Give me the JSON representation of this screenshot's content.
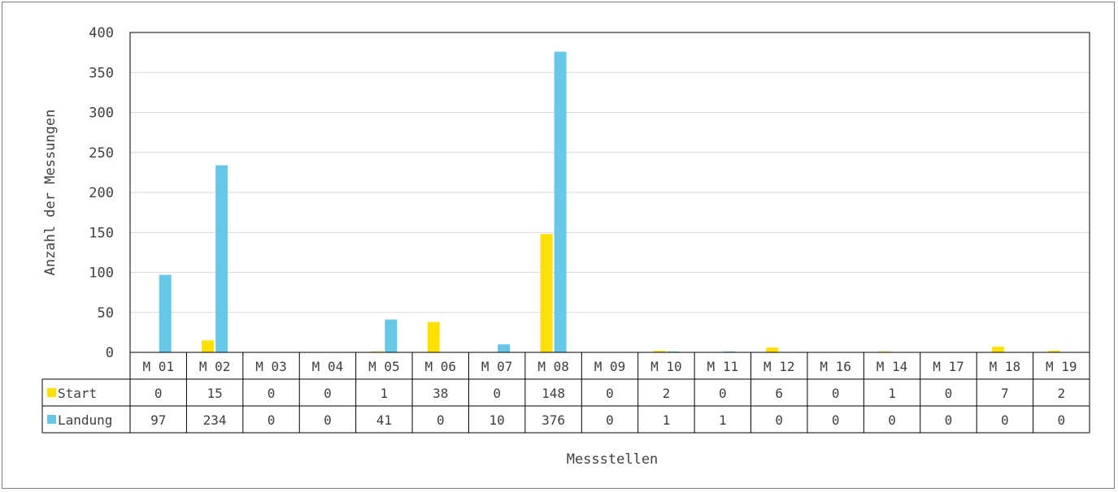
{
  "chart_data": {
    "type": "bar",
    "categories": [
      "M 01",
      "M 02",
      "M 03",
      "M 04",
      "M 05",
      "M 06",
      "M 07",
      "M 08",
      "M 09",
      "M 10",
      "M 11",
      "M 12",
      "M 16",
      "M 14",
      "M 17",
      "M 18",
      "M 19"
    ],
    "series": [
      {
        "name": "Start",
        "color": "#FFE000",
        "values": [
          0,
          15,
          0,
          0,
          1,
          38,
          0,
          148,
          0,
          2,
          0,
          6,
          0,
          1,
          0,
          7,
          2
        ]
      },
      {
        "name": "Landung",
        "color": "#66C8E6",
        "values": [
          97,
          234,
          0,
          0,
          41,
          0,
          10,
          376,
          0,
          1,
          1,
          0,
          0,
          0,
          0,
          0,
          0
        ]
      }
    ],
    "xlabel": "Messstellen",
    "ylabel": "Anzahl der Messungen",
    "ylim": [
      0,
      400
    ],
    "yticks": [
      0,
      50,
      100,
      150,
      200,
      250,
      300,
      350,
      400
    ],
    "grid": true,
    "legend": "data-table"
  }
}
